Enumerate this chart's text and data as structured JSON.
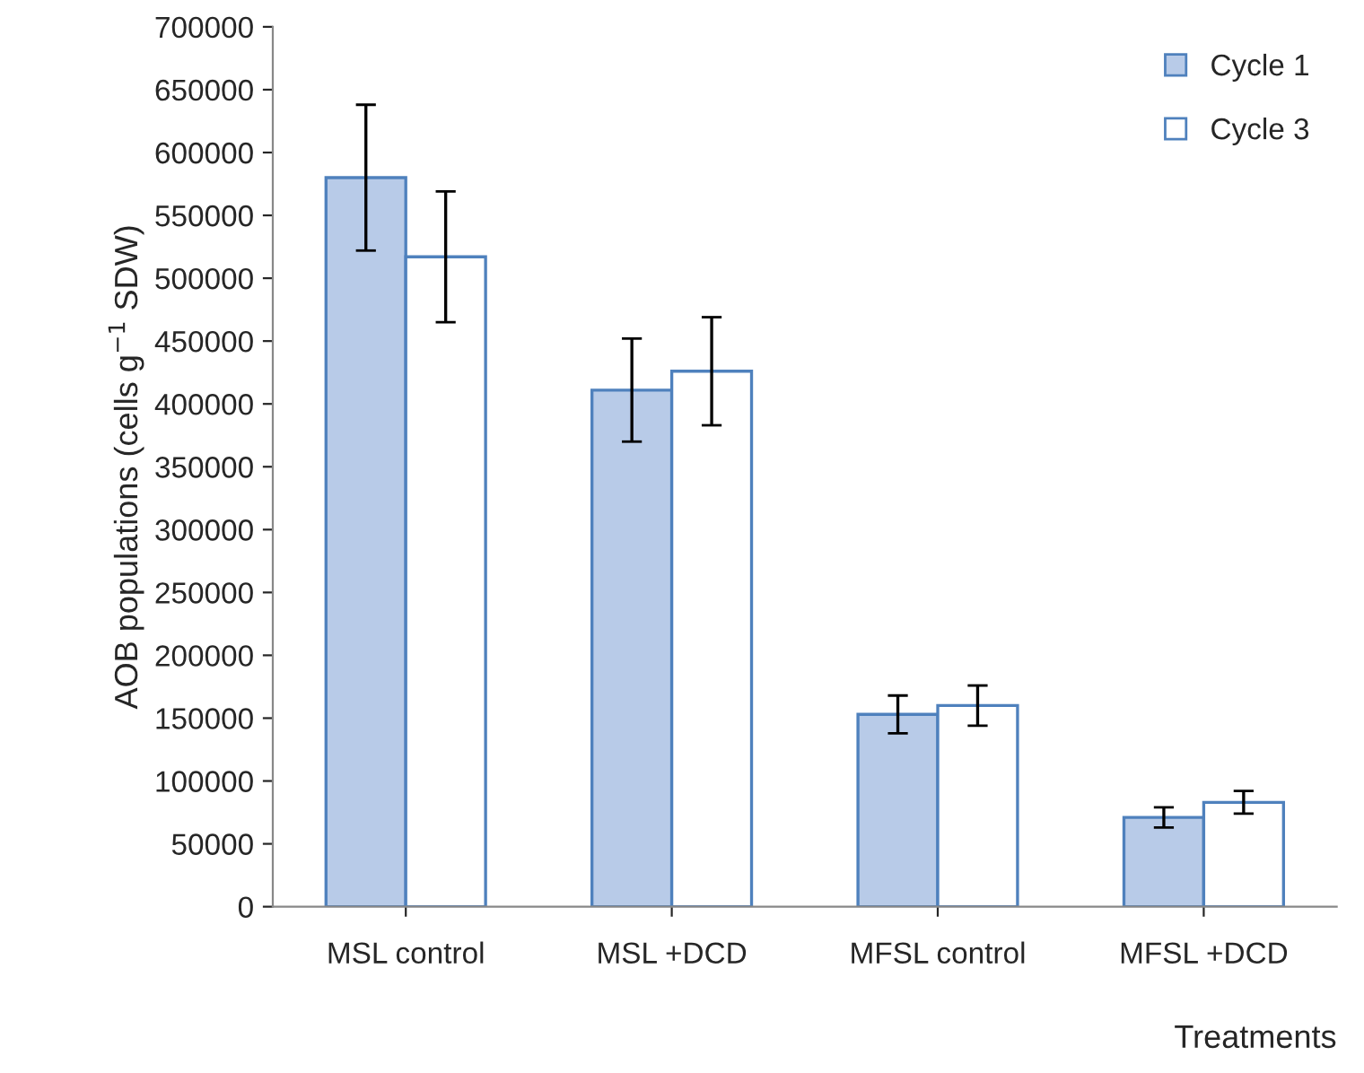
{
  "chart_data": {
    "type": "bar",
    "ylabel": "AOB populations (cells g$^{−1}$ SDW)",
    "xlabel": "Treatments",
    "categories": [
      "MSL control",
      "MSL +DCD",
      "MFSL control",
      "MFSL +DCD"
    ],
    "series": [
      {
        "name": "Cycle 1",
        "color": "#b8cbe8",
        "values": [
          580000,
          411000,
          153000,
          71000
        ],
        "errors": [
          58000,
          41000,
          15000,
          8000
        ]
      },
      {
        "name": "Cycle 3",
        "color": "#ffffff",
        "values": [
          517000,
          426000,
          160000,
          83000
        ],
        "errors": [
          52000,
          43000,
          16000,
          9000
        ]
      }
    ],
    "ylim": [
      0,
      700000
    ],
    "yticks": [
      0,
      50000,
      100000,
      150000,
      200000,
      250000,
      300000,
      350000,
      400000,
      450000,
      500000,
      550000,
      600000,
      650000,
      700000
    ],
    "legend": "top right",
    "grid": false
  }
}
